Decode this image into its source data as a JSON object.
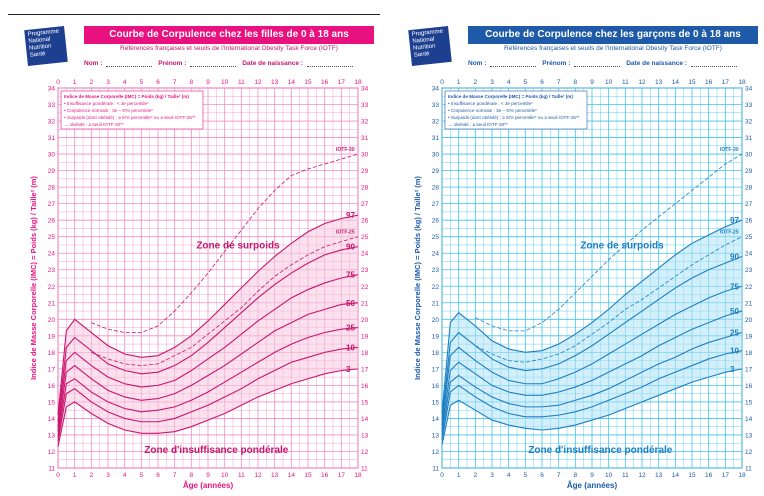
{
  "panels": [
    {
      "id": "girls",
      "accent": "#e8117f",
      "grid_color": "#f28ec5",
      "fill_color": "#f8c6df",
      "line_color": "#c8166e",
      "title": "Courbe de Corpulence chez les filles de 0 à 18 ans",
      "subtitle": "Références françaises et seuils de l'International Obesity Task Force (IOTF)",
      "logo_lines": [
        "Programme",
        "National",
        "Nutrition",
        "Santé"
      ],
      "fields": [
        "Nom :",
        "Prénom :",
        "Date de naissance :"
      ],
      "legend": [
        "Indice de Masse Corporelle (IMC) = Poids (kg) / Taille² (m)",
        "• Insuffisance pondérale : < 3e percentile*",
        "• Corpulence normale : 3e – 97e percentile*",
        "• Surpoids (dont obésité) : ≥ 97e percentile* ou ≥ seuil IOTF-25**",
        "→ obésité : ≥ seuil IOTF-30**"
      ],
      "zone_overweight": "Zone de surpoids",
      "zone_underweight": "Zone d'insuffisance pondérale",
      "chart_data": {
        "type": "line",
        "title": "Courbe de Corpulence chez les filles de 0 à 18 ans",
        "xlabel": "Âge (années)",
        "ylabel": "Indice de Masse Corporelle (IMC) = Poids (kg) / Taille² (m)",
        "xlim": [
          0,
          18
        ],
        "ylim": [
          11,
          34
        ],
        "x_ticks": [
          0,
          1,
          2,
          3,
          4,
          5,
          6,
          7,
          8,
          9,
          10,
          11,
          12,
          13,
          14,
          15,
          16,
          17,
          18
        ],
        "y_ticks": [
          11,
          12,
          13,
          14,
          15,
          16,
          17,
          18,
          19,
          20,
          21,
          22,
          23,
          24,
          25,
          26,
          27,
          28,
          29,
          30,
          31,
          32,
          33,
          34
        ],
        "x": [
          0,
          0.5,
          1,
          2,
          3,
          4,
          5,
          6,
          7,
          8,
          9,
          10,
          11,
          12,
          13,
          14,
          15,
          16,
          17,
          18
        ],
        "series": [
          {
            "name": "97",
            "label": "97",
            "values": [
              14.2,
              19.3,
              20.0,
              19.2,
              18.4,
              17.9,
              17.7,
              17.8,
              18.3,
              19.0,
              19.9,
              20.9,
              21.9,
              22.9,
              23.8,
              24.6,
              25.3,
              25.8,
              26.1,
              26.3
            ]
          },
          {
            "name": "90",
            "label": "90",
            "values": [
              13.8,
              18.3,
              18.9,
              18.1,
              17.3,
              16.9,
              16.7,
              16.8,
              17.2,
              17.8,
              18.6,
              19.5,
              20.4,
              21.3,
              22.1,
              22.8,
              23.4,
              23.9,
              24.2,
              24.4
            ]
          },
          {
            "name": "75",
            "label": "75",
            "values": [
              13.5,
              17.5,
              18.0,
              17.2,
              16.5,
              16.1,
              15.9,
              16.0,
              16.3,
              16.9,
              17.6,
              18.3,
              19.1,
              19.9,
              20.6,
              21.3,
              21.8,
              22.2,
              22.5,
              22.7
            ]
          },
          {
            "name": "50",
            "label": "50",
            "values": [
              13.2,
              16.8,
              17.2,
              16.4,
              15.7,
              15.3,
              15.1,
              15.2,
              15.5,
              16.0,
              16.6,
              17.2,
              17.9,
              18.6,
              19.3,
              19.8,
              20.3,
              20.6,
              20.9,
              21.0
            ]
          },
          {
            "name": "25",
            "label": "25",
            "values": [
              12.9,
              16.1,
              16.4,
              15.6,
              15.0,
              14.6,
              14.4,
              14.5,
              14.7,
              15.1,
              15.6,
              16.2,
              16.8,
              17.4,
              18.0,
              18.5,
              18.9,
              19.2,
              19.4,
              19.5
            ]
          },
          {
            "name": "10",
            "label": "10",
            "values": [
              12.6,
              15.5,
              15.8,
              15.0,
              14.4,
              14.0,
              13.8,
              13.8,
              14.0,
              14.4,
              14.8,
              15.3,
              15.8,
              16.4,
              16.9,
              17.4,
              17.7,
              18.0,
              18.2,
              18.3
            ]
          },
          {
            "name": "3",
            "label": "3",
            "values": [
              12.3,
              14.7,
              15.0,
              14.3,
              13.7,
              13.3,
              13.1,
              13.1,
              13.2,
              13.5,
              13.9,
              14.3,
              14.8,
              15.3,
              15.7,
              16.1,
              16.4,
              16.7,
              16.9,
              17.0
            ]
          },
          {
            "name": "IOTF-25",
            "label": "IOTF-25",
            "dashed": true,
            "values": [
              null,
              null,
              null,
              18.0,
              17.6,
              17.3,
              17.2,
              17.3,
              17.8,
              18.3,
              19.1,
              19.9,
              20.7,
              21.7,
              22.6,
              23.3,
              23.9,
              24.4,
              24.7,
              25.0
            ]
          },
          {
            "name": "IOTF-30",
            "label": "IOTF-30",
            "dashed": true,
            "values": [
              null,
              null,
              null,
              19.8,
              19.4,
              19.2,
              19.2,
              19.6,
              20.5,
              21.6,
              22.8,
              24.1,
              25.4,
              26.7,
              27.8,
              28.7,
              29.1,
              29.4,
              29.7,
              30.0
            ]
          }
        ]
      }
    },
    {
      "id": "boys",
      "accent": "#1e5aa8",
      "grid_color": "#41c3ec",
      "fill_color": "#aee2f6",
      "line_color": "#1e7fc2",
      "title": "Courbe de Corpulence chez les garçons de 0 à 18 ans",
      "subtitle": "Références françaises et seuils de l'International Obesity Task Force (IOTF)",
      "logo_lines": [
        "Programme",
        "National",
        "Nutrition",
        "Santé"
      ],
      "fields": [
        "Nom :",
        "Prénom :",
        "Date de naissance :"
      ],
      "legend": [
        "Indice de Masse Corporelle (IMC) = Poids (kg) / Taille² (m)",
        "• Insuffisance pondérale : < 3e percentile*",
        "• Corpulence normale : 3e – 97e percentile*",
        "• Surpoids (dont obésité) : ≥ 97e percentile* ou ≥ seuil IOTF-25**",
        "→ obésité : ≥ seuil IOTF-30**"
      ],
      "zone_overweight": "Zone de surpoids",
      "zone_underweight": "Zone d'insuffisance pondérale",
      "chart_data": {
        "type": "line",
        "title": "Courbe de Corpulence chez les garçons de 0 à 18 ans",
        "xlabel": "Âge (années)",
        "ylabel": "Indice de Masse Corporelle (IMC) = Poids (kg) / Taille² (m)",
        "xlim": [
          0,
          18
        ],
        "ylim": [
          11,
          34
        ],
        "x_ticks": [
          0,
          1,
          2,
          3,
          4,
          5,
          6,
          7,
          8,
          9,
          10,
          11,
          12,
          13,
          14,
          15,
          16,
          17,
          18
        ],
        "y_ticks": [
          11,
          12,
          13,
          14,
          15,
          16,
          17,
          18,
          19,
          20,
          21,
          22,
          23,
          24,
          25,
          26,
          27,
          28,
          29,
          30,
          31,
          32,
          33,
          34
        ],
        "x": [
          0,
          0.5,
          1,
          2,
          3,
          4,
          5,
          6,
          7,
          8,
          9,
          10,
          11,
          12,
          13,
          14,
          15,
          16,
          17,
          18
        ],
        "series": [
          {
            "name": "97",
            "label": "97",
            "values": [
              14.3,
              19.8,
              20.4,
              19.6,
              18.7,
              18.2,
              18.0,
              18.1,
              18.5,
              19.1,
              19.8,
              20.6,
              21.5,
              22.3,
              23.1,
              23.9,
              24.6,
              25.1,
              25.6,
              26.0
            ]
          },
          {
            "name": "90",
            "label": "90",
            "values": [
              13.9,
              18.6,
              19.2,
              18.4,
              17.6,
              17.1,
              16.9,
              17.0,
              17.3,
              17.8,
              18.4,
              19.1,
              19.8,
              20.5,
              21.2,
              21.9,
              22.5,
              23.0,
              23.4,
              23.8
            ]
          },
          {
            "name": "75",
            "label": "75",
            "values": [
              13.6,
              17.8,
              18.3,
              17.5,
              16.8,
              16.3,
              16.1,
              16.1,
              16.4,
              16.8,
              17.3,
              17.9,
              18.5,
              19.1,
              19.7,
              20.3,
              20.8,
              21.3,
              21.7,
              22.0
            ]
          },
          {
            "name": "50",
            "label": "50",
            "values": [
              13.3,
              16.9,
              17.4,
              16.7,
              16.0,
              15.6,
              15.4,
              15.4,
              15.6,
              15.9,
              16.3,
              16.8,
              17.3,
              17.8,
              18.4,
              18.9,
              19.4,
              19.8,
              20.2,
              20.5
            ]
          },
          {
            "name": "25",
            "label": "25",
            "values": [
              13.0,
              16.2,
              16.6,
              15.9,
              15.3,
              14.9,
              14.7,
              14.7,
              14.8,
              15.1,
              15.4,
              15.8,
              16.3,
              16.8,
              17.3,
              17.7,
              18.2,
              18.6,
              18.9,
              19.2
            ]
          },
          {
            "name": "10",
            "label": "10",
            "values": [
              12.7,
              15.6,
              16.0,
              15.3,
              14.7,
              14.3,
              14.1,
              14.1,
              14.2,
              14.4,
              14.7,
              15.1,
              15.5,
              15.9,
              16.4,
              16.8,
              17.2,
              17.6,
              17.9,
              18.1
            ]
          },
          {
            "name": "3",
            "label": "3",
            "values": [
              12.4,
              14.8,
              15.1,
              14.5,
              13.9,
              13.6,
              13.4,
              13.3,
              13.4,
              13.6,
              13.9,
              14.2,
              14.6,
              15.0,
              15.4,
              15.8,
              16.2,
              16.5,
              16.8,
              17.0
            ]
          },
          {
            "name": "IOTF-25",
            "label": "IOTF-25",
            "dashed": true,
            "values": [
              null,
              null,
              null,
              18.4,
              17.9,
              17.5,
              17.4,
              17.6,
              17.9,
              18.4,
              19.1,
              19.8,
              20.6,
              21.2,
              21.9,
              22.6,
              23.3,
              23.9,
              24.5,
              25.0
            ]
          },
          {
            "name": "IOTF-30",
            "label": "IOTF-30",
            "dashed": true,
            "values": [
              null,
              null,
              null,
              20.1,
              19.6,
              19.3,
              19.3,
              19.8,
              20.6,
              21.6,
              22.6,
              23.6,
              24.5,
              25.4,
              26.2,
              27.0,
              27.8,
              28.6,
              29.4,
              30.0
            ]
          }
        ]
      }
    }
  ]
}
